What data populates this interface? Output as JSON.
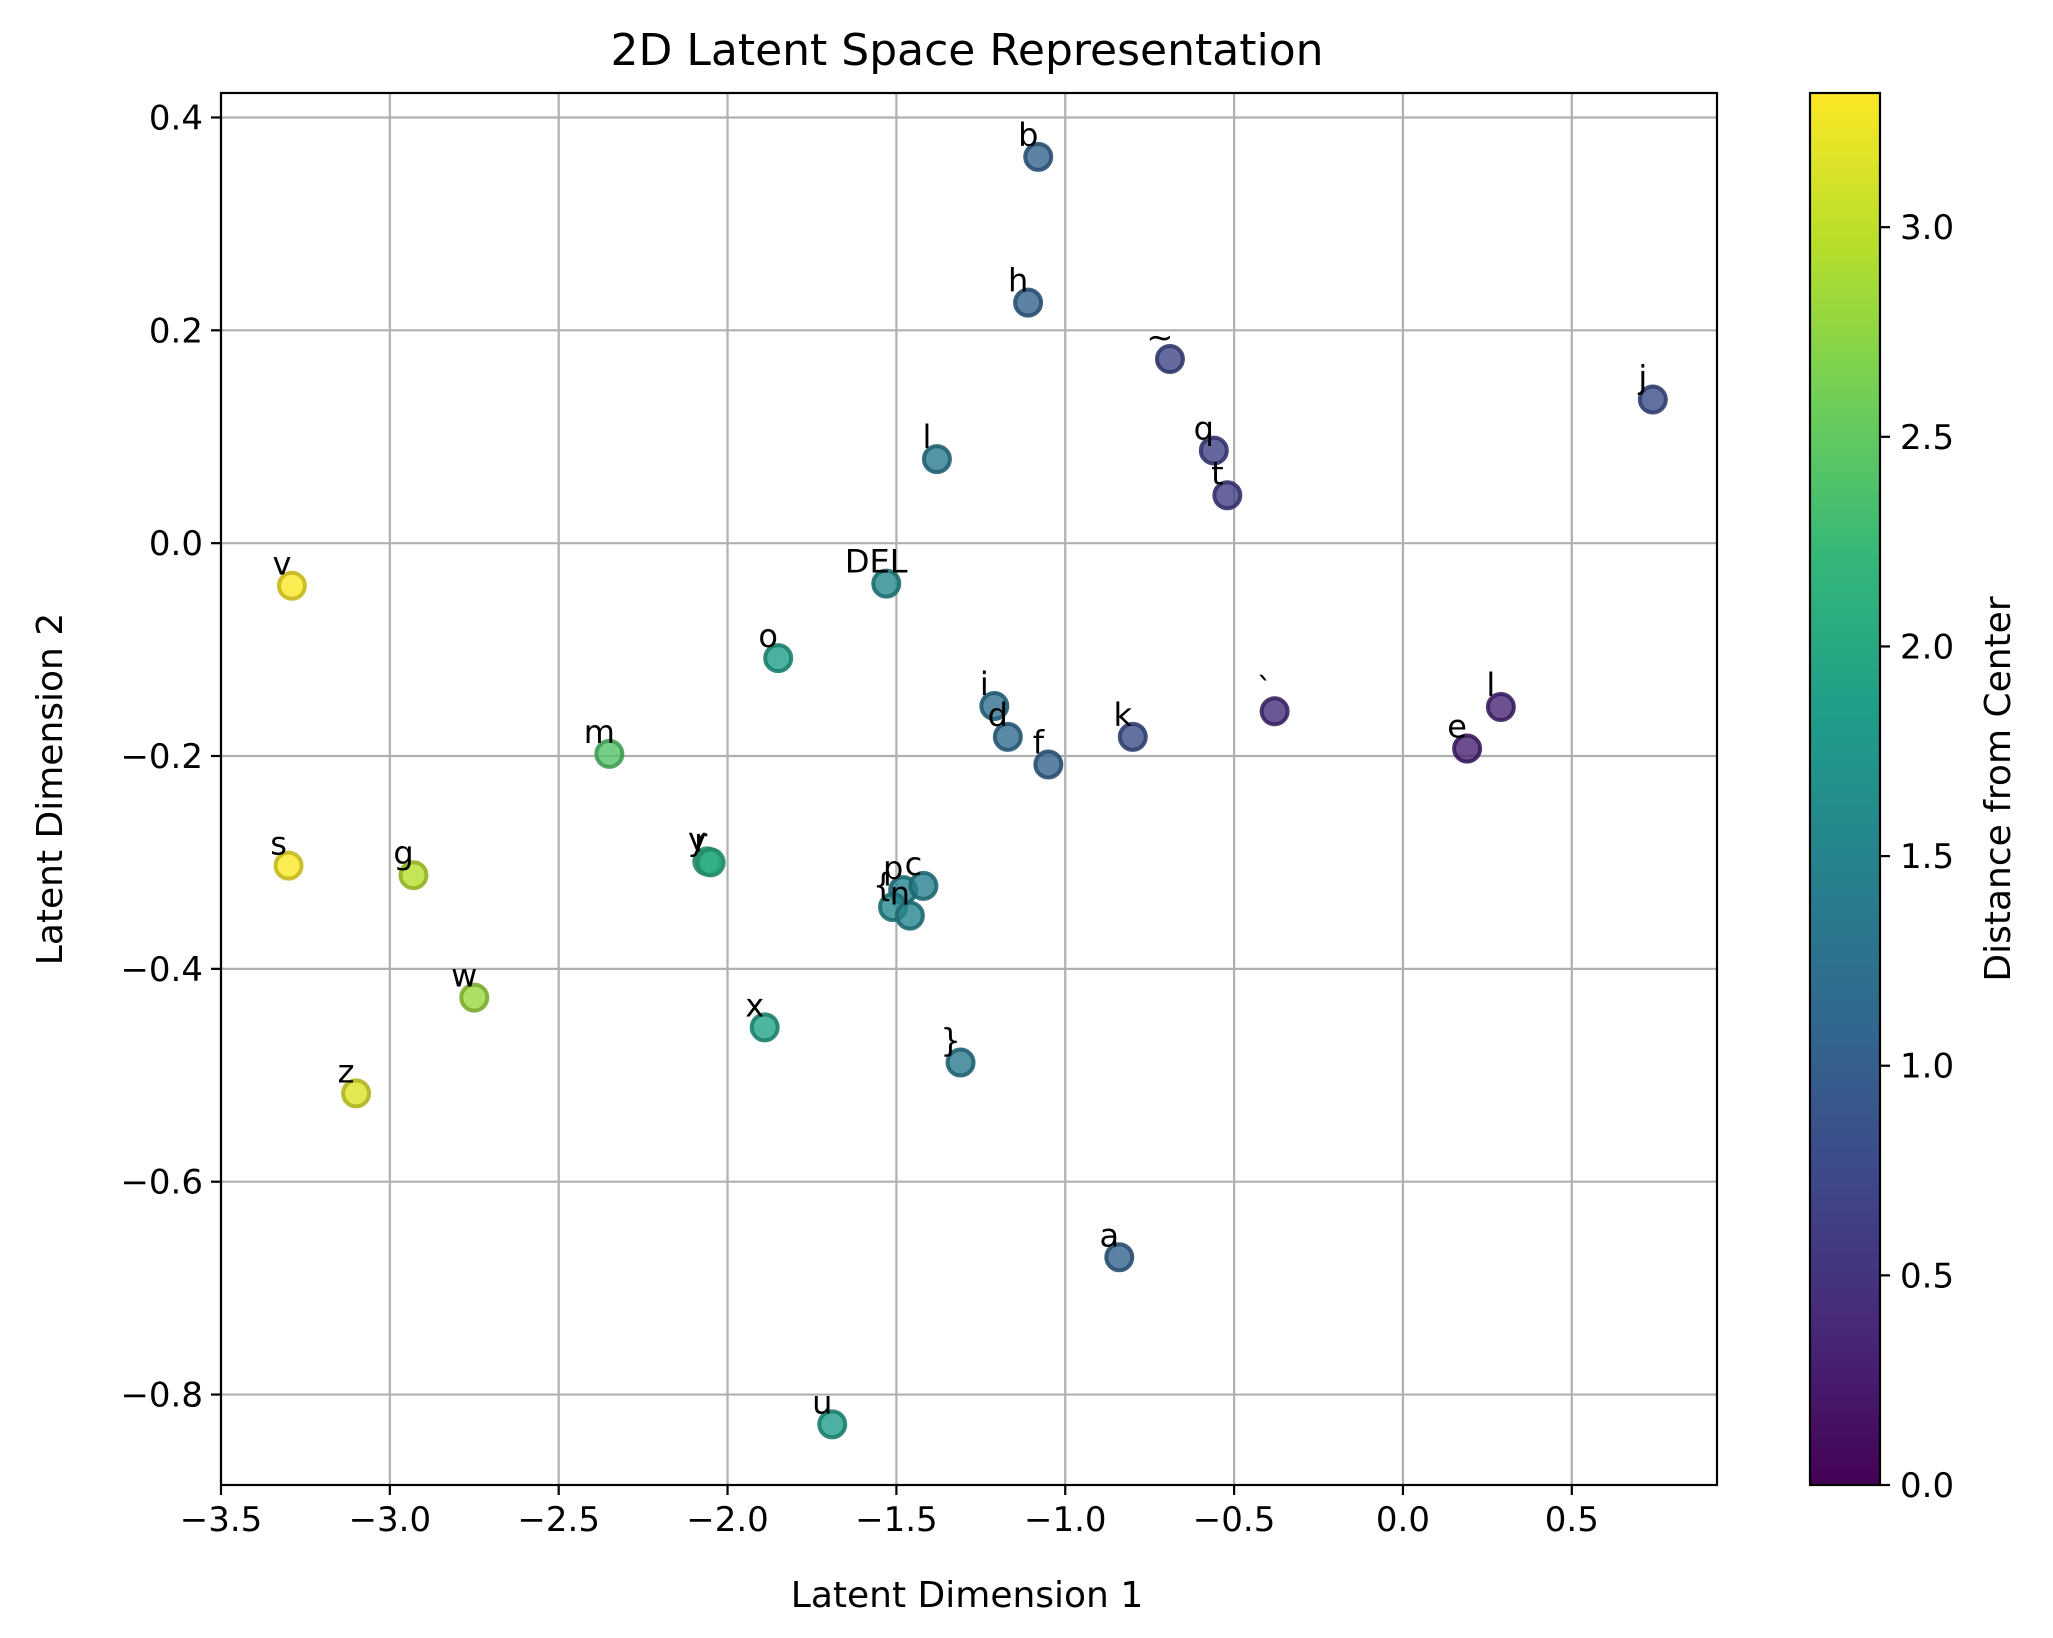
{
  "chart_data": {
    "type": "scatter",
    "title": "2D Latent Space Representation",
    "xlabel": "Latent Dimension 1",
    "ylabel": "Latent Dimension 2",
    "xlim": [
      -3.5,
      0.93
    ],
    "ylim": [
      -0.885,
      0.423
    ],
    "x_ticks": [
      -3.5,
      -3.0,
      -2.5,
      -2.0,
      -1.5,
      -1.0,
      -0.5,
      0.0,
      0.5
    ],
    "y_ticks": [
      -0.8,
      -0.6,
      -0.4,
      -0.2,
      0.0,
      0.2,
      0.4
    ],
    "grid": true,
    "colorbar": {
      "label": "Distance from Center",
      "colormap": "viridis",
      "range": [
        0.0,
        3.32
      ],
      "ticks": [
        0.0,
        0.5,
        1.0,
        1.5,
        2.0,
        2.5,
        3.0
      ]
    },
    "points": [
      {
        "label": "b",
        "x": -1.08,
        "y": 0.363,
        "c": 1.05
      },
      {
        "label": "h",
        "x": -1.11,
        "y": 0.226,
        "c": 1.05
      },
      {
        "label": "~",
        "x": -0.69,
        "y": 0.173,
        "c": 0.7
      },
      {
        "label": "j",
        "x": 0.74,
        "y": 0.135,
        "c": 0.8
      },
      {
        "label": "q",
        "x": -0.56,
        "y": 0.087,
        "c": 0.65
      },
      {
        "label": "l",
        "x": -1.38,
        "y": 0.079,
        "c": 1.35
      },
      {
        "label": "t",
        "x": -0.52,
        "y": 0.045,
        "c": 0.6
      },
      {
        "label": "v",
        "x": -3.29,
        "y": -0.04,
        "c": 3.3
      },
      {
        "label": "DEL",
        "x": -1.53,
        "y": -0.038,
        "c": 1.55
      },
      {
        "label": "o",
        "x": -1.85,
        "y": -0.108,
        "c": 1.85
      },
      {
        "label": "i",
        "x": -1.21,
        "y": -0.153,
        "c": 1.22
      },
      {
        "label": "`",
        "x": -0.38,
        "y": -0.158,
        "c": 0.42
      },
      {
        "label": "l",
        "x": 0.29,
        "y": -0.154,
        "c": 0.35
      },
      {
        "label": "d",
        "x": -1.17,
        "y": -0.182,
        "c": 1.17
      },
      {
        "label": "k",
        "x": -0.8,
        "y": -0.182,
        "c": 0.8
      },
      {
        "label": "e",
        "x": 0.19,
        "y": -0.193,
        "c": 0.3
      },
      {
        "label": "f",
        "x": -1.05,
        "y": -0.208,
        "c": 1.05
      },
      {
        "label": "m",
        "x": -2.35,
        "y": -0.198,
        "c": 2.4
      },
      {
        "label": "s",
        "x": -3.3,
        "y": -0.303,
        "c": 3.3
      },
      {
        "label": "g",
        "x": -2.93,
        "y": -0.312,
        "c": 2.95
      },
      {
        "label": "y",
        "x": -2.06,
        "y": -0.299,
        "c": 2.08
      },
      {
        "label": "r",
        "x": -2.05,
        "y": -0.3,
        "c": 2.07
      },
      {
        "label": "p",
        "x": -1.48,
        "y": -0.326,
        "c": 1.5
      },
      {
        "label": "c",
        "x": -1.42,
        "y": -0.322,
        "c": 1.45
      },
      {
        "label": "{",
        "x": -1.51,
        "y": -0.342,
        "c": 1.55
      },
      {
        "label": "n",
        "x": -1.46,
        "y": -0.35,
        "c": 1.5
      },
      {
        "label": "w",
        "x": -2.75,
        "y": -0.427,
        "c": 2.8
      },
      {
        "label": "x",
        "x": -1.89,
        "y": -0.455,
        "c": 1.9
      },
      {
        "label": "}",
        "x": -1.31,
        "y": -0.488,
        "c": 1.35
      },
      {
        "label": "z",
        "x": -3.1,
        "y": -0.517,
        "c": 3.15
      },
      {
        "label": "a",
        "x": -0.84,
        "y": -0.671,
        "c": 1.05
      },
      {
        "label": "u",
        "x": -1.69,
        "y": -0.828,
        "c": 1.85
      }
    ]
  }
}
